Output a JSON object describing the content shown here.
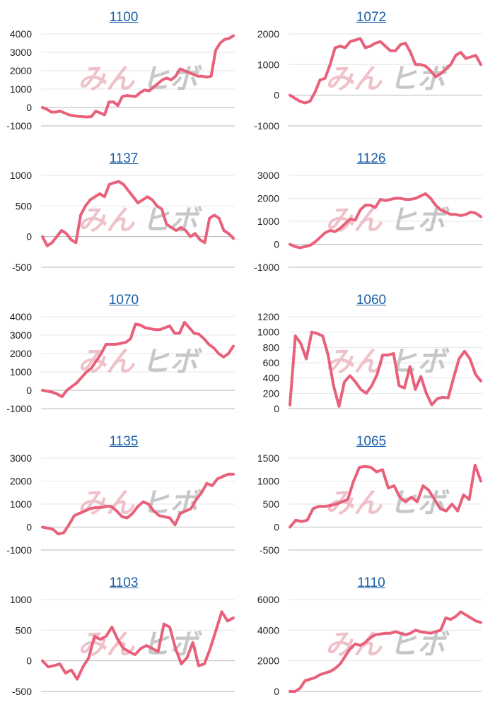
{
  "colors": {
    "line": "#e8607a",
    "title": "#1a5fa6",
    "grid": "#e6e6e6",
    "axis": "#b8b8b8"
  },
  "watermark": {
    "left": "みん",
    "right": "ヒボ"
  },
  "chart_data": [
    {
      "type": "line",
      "title": "1100",
      "ylim": [
        -1000,
        4000
      ],
      "yticks": [
        "4000",
        "3000",
        "2000",
        "1000",
        "0",
        "-1000"
      ],
      "values": [
        0,
        -100,
        -250,
        -250,
        -200,
        -300,
        -400,
        -450,
        -480,
        -500,
        -520,
        -500,
        -200,
        -300,
        -400,
        300,
        300,
        100,
        600,
        650,
        620,
        600,
        800,
        950,
        900,
        1100,
        1300,
        1500,
        1600,
        1500,
        1700,
        2100,
        2000,
        1900,
        1800,
        1700,
        1700,
        1650,
        1700,
        3100,
        3500,
        3700,
        3750,
        3900
      ]
    },
    {
      "type": "line",
      "title": "1072",
      "ylim": [
        -1000,
        2000
      ],
      "yticks": [
        "2000",
        "1000",
        "0",
        "-1000"
      ],
      "values": [
        0,
        -100,
        -200,
        -250,
        -200,
        100,
        500,
        550,
        1000,
        1550,
        1600,
        1550,
        1750,
        1800,
        1850,
        1550,
        1600,
        1700,
        1750,
        1600,
        1450,
        1450,
        1650,
        1700,
        1400,
        1000,
        1000,
        950,
        800,
        600,
        700,
        850,
        1000,
        1300,
        1400,
        1200,
        1250,
        1300,
        1000
      ]
    },
    {
      "type": "line",
      "title": "1137",
      "ylim": [
        -500,
        1000
      ],
      "yticks": [
        "1000",
        "500",
        "0",
        "-500"
      ],
      "values": [
        0,
        -150,
        -100,
        0,
        100,
        50,
        -50,
        -100,
        350,
        500,
        600,
        650,
        700,
        650,
        850,
        880,
        900,
        850,
        750,
        650,
        550,
        600,
        650,
        600,
        500,
        450,
        200,
        150,
        100,
        150,
        100,
        0,
        50,
        -50,
        -100,
        300,
        350,
        300,
        100,
        50,
        -30
      ]
    },
    {
      "type": "line",
      "title": "1126",
      "ylim": [
        -1000,
        3000
      ],
      "yticks": [
        "3000",
        "2000",
        "1000",
        "0",
        "-1000"
      ],
      "values": [
        0,
        -100,
        -150,
        -100,
        -50,
        100,
        300,
        500,
        600,
        550,
        700,
        900,
        1100,
        1050,
        1500,
        1700,
        1700,
        1600,
        1950,
        1900,
        1950,
        2000,
        2000,
        1950,
        1950,
        2000,
        2100,
        2200,
        2000,
        1700,
        1500,
        1400,
        1300,
        1300,
        1250,
        1300,
        1400,
        1350,
        1200
      ]
    },
    {
      "type": "line",
      "title": "1070",
      "ylim": [
        -1000,
        4000
      ],
      "yticks": [
        "4000",
        "3000",
        "2000",
        "1000",
        "0",
        "-1000"
      ],
      "values": [
        0,
        -50,
        -100,
        -200,
        -350,
        0,
        200,
        400,
        700,
        1000,
        1200,
        1600,
        2000,
        2500,
        2500,
        2500,
        2550,
        2600,
        2800,
        3600,
        3550,
        3400,
        3350,
        3300,
        3300,
        3400,
        3500,
        3100,
        3100,
        3700,
        3400,
        3100,
        3050,
        2800,
        2500,
        2300,
        2000,
        1800,
        2000,
        2400
      ]
    },
    {
      "type": "line",
      "title": "1060",
      "ylim": [
        0,
        1200
      ],
      "yticks": [
        "1200",
        "1000",
        "800",
        "600",
        "400",
        "200",
        "0"
      ],
      "values": [
        50,
        950,
        850,
        650,
        1000,
        980,
        950,
        700,
        300,
        30,
        350,
        430,
        350,
        250,
        200,
        300,
        450,
        700,
        700,
        720,
        300,
        270,
        550,
        250,
        420,
        200,
        50,
        130,
        150,
        140,
        400,
        650,
        750,
        650,
        450,
        360
      ]
    },
    {
      "type": "line",
      "title": "1135",
      "ylim": [
        -1000,
        3000
      ],
      "yticks": [
        "3000",
        "2000",
        "1000",
        "0",
        "-1000"
      ],
      "values": [
        0,
        -50,
        -100,
        -300,
        -250,
        100,
        500,
        600,
        700,
        800,
        850,
        850,
        900,
        900,
        700,
        450,
        400,
        600,
        900,
        1100,
        1000,
        700,
        500,
        450,
        400,
        100,
        600,
        700,
        800,
        1200,
        1500,
        1900,
        1800,
        2100,
        2200,
        2300,
        2300
      ]
    },
    {
      "type": "line",
      "title": "1065",
      "ylim": [
        -500,
        1500
      ],
      "yticks": [
        "1500",
        "1000",
        "500",
        "0",
        "-500"
      ],
      "values": [
        0,
        150,
        120,
        150,
        400,
        450,
        450,
        470,
        500,
        550,
        600,
        1000,
        1300,
        1320,
        1300,
        1200,
        1250,
        850,
        900,
        650,
        550,
        650,
        550,
        900,
        800,
        600,
        400,
        350,
        500,
        350,
        700,
        600,
        1350,
        1000
      ]
    },
    {
      "type": "line",
      "title": "1103",
      "ylim": [
        -500,
        1000
      ],
      "yticks": [
        "1000",
        "500",
        "0",
        "-500"
      ],
      "values": [
        0,
        -100,
        -80,
        -50,
        -200,
        -150,
        -300,
        -100,
        50,
        400,
        350,
        400,
        550,
        350,
        200,
        150,
        100,
        200,
        250,
        200,
        150,
        600,
        550,
        200,
        -50,
        50,
        300,
        -80,
        -50,
        200,
        500,
        800,
        650,
        700
      ]
    },
    {
      "type": "line",
      "title": "1110",
      "ylim": [
        0,
        6000
      ],
      "yticks": [
        "6000",
        "4000",
        "2000",
        "0"
      ],
      "values": [
        0,
        0,
        200,
        700,
        800,
        900,
        1100,
        1200,
        1300,
        1500,
        1800,
        2300,
        2800,
        3100,
        3000,
        3200,
        3500,
        3700,
        3750,
        3800,
        3800,
        3900,
        3800,
        3700,
        3800,
        4000,
        3900,
        3850,
        3800,
        3900,
        4000,
        4800,
        4700,
        4900,
        5200,
        5000,
        4800,
        4600,
        4500
      ]
    }
  ]
}
